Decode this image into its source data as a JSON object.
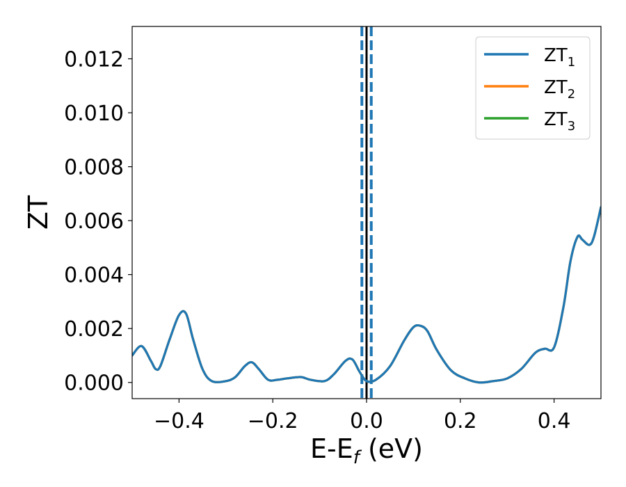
{
  "chart_data": {
    "type": "line",
    "xlabel": "E-E",
    "xlabel_sub": "f",
    "xlabel_unit": " (eV)",
    "ylabel": "ZT",
    "xlim": [
      -0.5,
      0.5
    ],
    "ylim": [
      -0.0006,
      0.0132
    ],
    "x_ticks": [
      -0.4,
      -0.2,
      0.0,
      0.2,
      0.4
    ],
    "x_tick_labels": [
      "−0.4",
      "−0.2",
      "0.0",
      "0.2",
      "0.4"
    ],
    "y_ticks": [
      0.0,
      0.002,
      0.004,
      0.006,
      0.008,
      0.01,
      0.012
    ],
    "y_tick_labels": [
      "0.000",
      "0.002",
      "0.004",
      "0.006",
      "0.008",
      "0.010",
      "0.012"
    ],
    "grid": false,
    "legend_position": "top-right",
    "legend": [
      {
        "label": "ZT",
        "sub": "1",
        "color": "#1f77b4"
      },
      {
        "label": "ZT",
        "sub": "2",
        "color": "#ff7f0e"
      },
      {
        "label": "ZT",
        "sub": "3",
        "color": "#2ca02c"
      }
    ],
    "vlines": [
      {
        "x": -0.01,
        "style": "dashed",
        "color": "#1f77b4"
      },
      {
        "x": 0.01,
        "style": "dashed",
        "color": "#1f77b4"
      },
      {
        "x": 0.0,
        "style": "solid",
        "color": "#000000"
      }
    ],
    "series": [
      {
        "color": "#2ca02c",
        "x": [
          -0.5,
          -0.48,
          -0.46,
          -0.45,
          -0.44,
          -0.42,
          -0.4,
          -0.385,
          -0.37,
          -0.35,
          -0.33,
          -0.3,
          -0.28,
          -0.26,
          -0.245,
          -0.23,
          -0.21,
          -0.19,
          -0.17,
          -0.14,
          -0.12,
          -0.09,
          -0.07,
          -0.045,
          -0.03,
          -0.015,
          0.0,
          0.02,
          0.05,
          0.08,
          0.1,
          0.115,
          0.13,
          0.15,
          0.18,
          0.21,
          0.24,
          0.27,
          0.3,
          0.33,
          0.36,
          0.38,
          0.4,
          0.42,
          0.435,
          0.45,
          0.46,
          0.475,
          0.485,
          0.5
        ],
        "y": [
          0.001,
          0.00135,
          0.0008,
          0.0005,
          0.0006,
          0.0016,
          0.0025,
          0.00255,
          0.0016,
          0.0005,
          5e-05,
          5e-05,
          0.0002,
          0.0006,
          0.00075,
          0.0005,
          0.0001,
          0.0001,
          0.00015,
          0.0002,
          0.0001,
          5e-05,
          0.0003,
          0.0008,
          0.00085,
          0.0004,
          5e-05,
          0.0001,
          0.0006,
          0.00155,
          0.00205,
          0.0021,
          0.0019,
          0.0012,
          0.00045,
          0.00015,
          0.0,
          5e-05,
          0.00015,
          0.0005,
          0.0011,
          0.00125,
          0.0013,
          0.0028,
          0.0045,
          0.0054,
          0.0053,
          0.0051,
          0.0054,
          0.0065
        ]
      },
      {
        "color": "#ff7f0e",
        "x": [
          -0.5,
          -0.48,
          -0.46,
          -0.45,
          -0.44,
          -0.42,
          -0.4,
          -0.385,
          -0.37,
          -0.35,
          -0.33,
          -0.3,
          -0.28,
          -0.26,
          -0.245,
          -0.23,
          -0.21,
          -0.19,
          -0.17,
          -0.14,
          -0.12,
          -0.09,
          -0.07,
          -0.045,
          -0.03,
          -0.015,
          0.0,
          0.02,
          0.05,
          0.08,
          0.1,
          0.115,
          0.13,
          0.15,
          0.18,
          0.21,
          0.24,
          0.27,
          0.3,
          0.33,
          0.36,
          0.38,
          0.4,
          0.42,
          0.435,
          0.45,
          0.46,
          0.475,
          0.485,
          0.5
        ],
        "y": [
          0.001,
          0.00135,
          0.0008,
          0.0005,
          0.0006,
          0.0016,
          0.0025,
          0.00255,
          0.0016,
          0.0005,
          5e-05,
          5e-05,
          0.0002,
          0.0006,
          0.00075,
          0.0005,
          0.0001,
          0.0001,
          0.00015,
          0.0002,
          0.0001,
          5e-05,
          0.0003,
          0.0008,
          0.00085,
          0.0004,
          5e-05,
          0.0001,
          0.0006,
          0.00155,
          0.00205,
          0.0021,
          0.0019,
          0.0012,
          0.00045,
          0.00015,
          0.0,
          5e-05,
          0.00015,
          0.0005,
          0.0011,
          0.00125,
          0.0013,
          0.0028,
          0.0045,
          0.0054,
          0.0053,
          0.0051,
          0.0054,
          0.0065
        ]
      },
      {
        "color": "#1f77b4",
        "x": [
          -0.5,
          -0.48,
          -0.46,
          -0.45,
          -0.44,
          -0.42,
          -0.4,
          -0.385,
          -0.37,
          -0.35,
          -0.33,
          -0.3,
          -0.28,
          -0.26,
          -0.245,
          -0.23,
          -0.21,
          -0.19,
          -0.17,
          -0.14,
          -0.12,
          -0.09,
          -0.07,
          -0.045,
          -0.03,
          -0.015,
          0.0,
          0.02,
          0.05,
          0.08,
          0.1,
          0.115,
          0.13,
          0.15,
          0.18,
          0.21,
          0.24,
          0.27,
          0.3,
          0.33,
          0.36,
          0.38,
          0.4,
          0.42,
          0.435,
          0.45,
          0.46,
          0.475,
          0.485,
          0.5
        ],
        "y": [
          0.001,
          0.00135,
          0.0008,
          0.0005,
          0.0006,
          0.0016,
          0.0025,
          0.00255,
          0.0016,
          0.0005,
          5e-05,
          5e-05,
          0.0002,
          0.0006,
          0.00075,
          0.0005,
          0.0001,
          0.0001,
          0.00015,
          0.0002,
          0.0001,
          5e-05,
          0.0003,
          0.0008,
          0.00085,
          0.0004,
          5e-05,
          0.0001,
          0.0006,
          0.00155,
          0.00205,
          0.0021,
          0.0019,
          0.0012,
          0.00045,
          0.00015,
          0.0,
          5e-05,
          0.00015,
          0.0005,
          0.0011,
          0.00125,
          0.0013,
          0.0028,
          0.0045,
          0.0054,
          0.0053,
          0.0051,
          0.0054,
          0.0065
        ]
      }
    ]
  }
}
